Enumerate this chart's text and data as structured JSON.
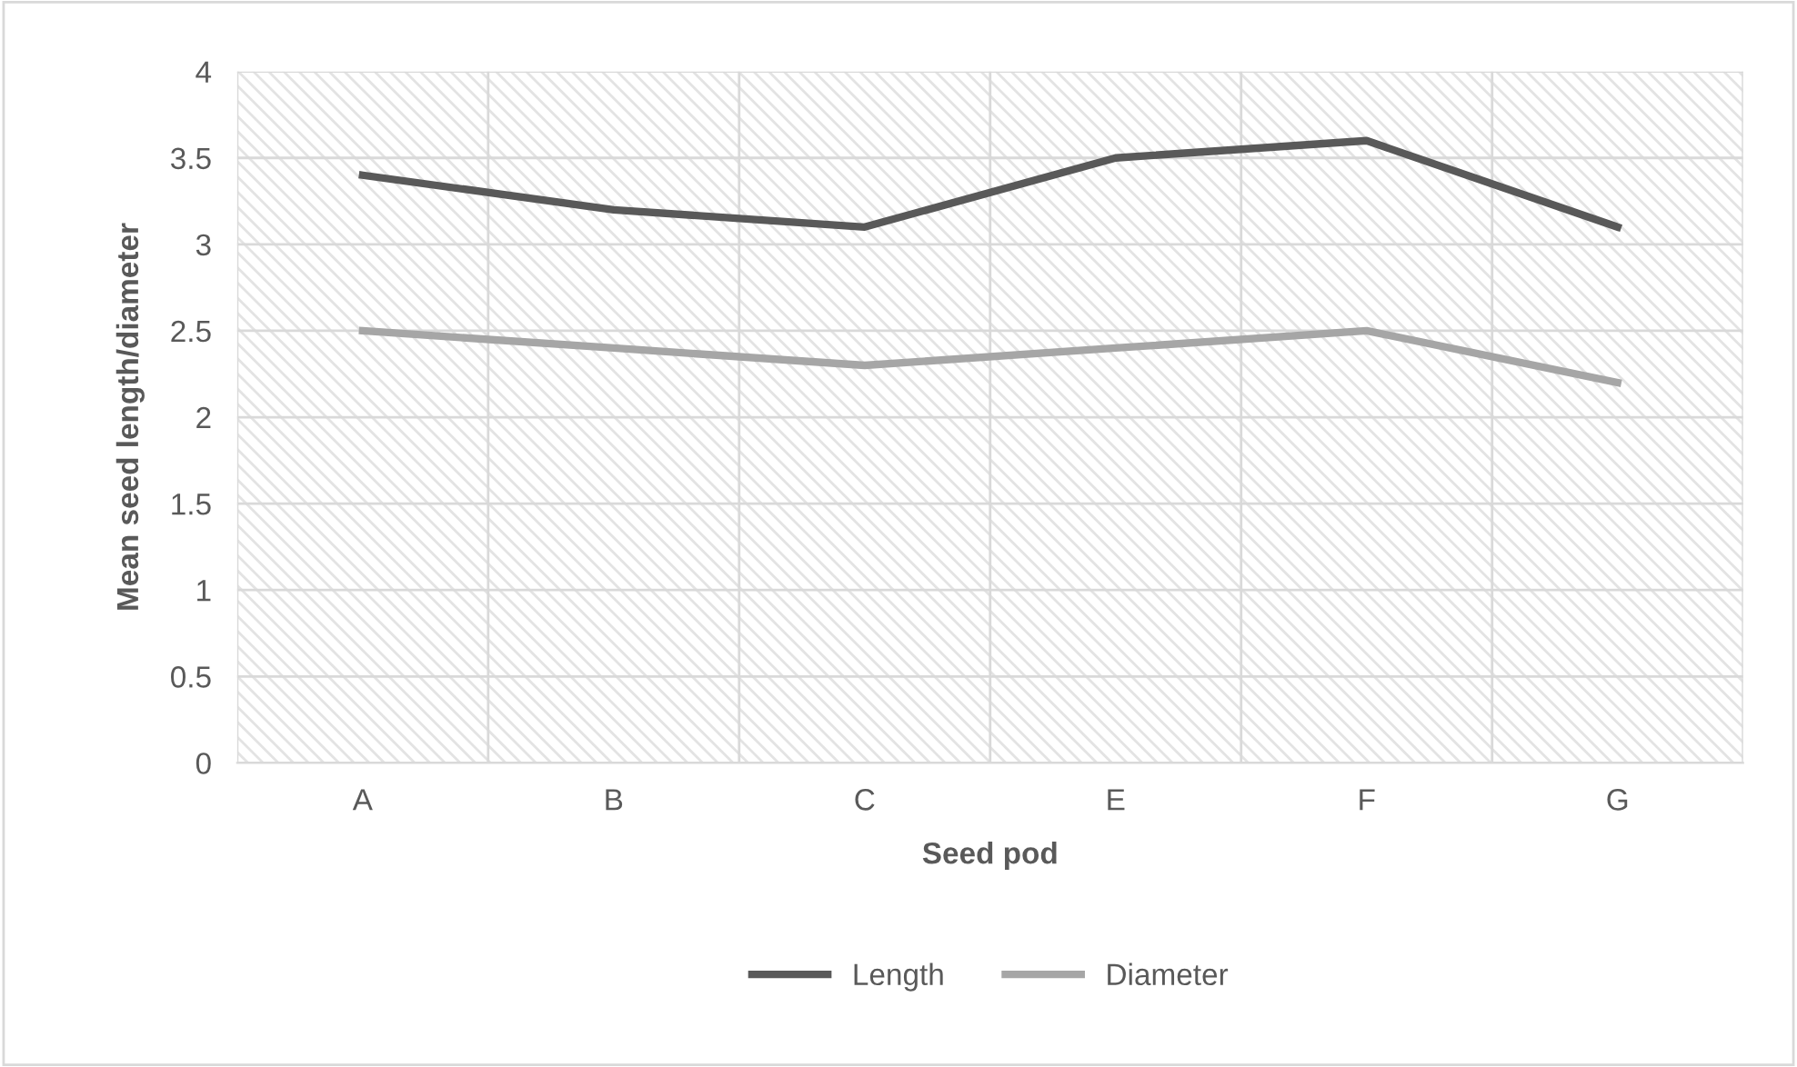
{
  "chart_data": {
    "type": "line",
    "xlabel": "Seed pod",
    "ylabel": "Mean seed length/diameter",
    "categories": [
      "A",
      "B",
      "C",
      "E",
      "F",
      "G"
    ],
    "series": [
      {
        "name": "Length",
        "color": "#595959",
        "values": [
          3.4,
          3.2,
          3.1,
          3.5,
          3.6,
          3.1
        ]
      },
      {
        "name": "Diameter",
        "color": "#a6a6a6",
        "values": [
          2.5,
          2.4,
          2.3,
          2.4,
          2.5,
          2.2
        ]
      }
    ],
    "ylim": [
      0,
      4
    ],
    "yticks": [
      0,
      0.5,
      1,
      1.5,
      2,
      2.5,
      3,
      3.5,
      4
    ],
    "grid": true,
    "legend": "bottom",
    "marker": "none",
    "line_style": "solid"
  }
}
